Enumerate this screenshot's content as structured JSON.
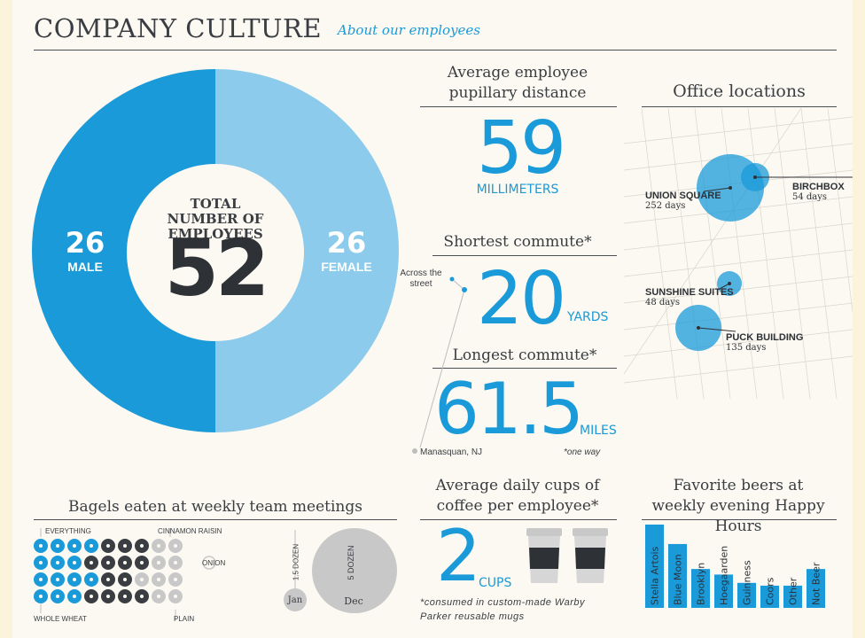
{
  "header": {
    "title": "COMPANY CULTURE",
    "subtitle": "About our employees"
  },
  "colors": {
    "blue": "#1a9ad9",
    "light_blue": "#8ccbec",
    "dark": "#3a3d42",
    "grey": "#c8c8c8",
    "bg": "#fbf9f1"
  },
  "employees": {
    "center_label": "TOTAL NUMBER OF EMPLOYEES",
    "total": "52",
    "male_count": "26",
    "male_label": "MALE",
    "female_count": "26",
    "female_label": "FEMALE"
  },
  "pupillary": {
    "title": "Average employee pupillary distance",
    "value": "59",
    "unit": "MILLIMETERS"
  },
  "shortest": {
    "title": "Shortest commute*",
    "value": "20",
    "unit": "YARDS",
    "note": "Across the street"
  },
  "longest": {
    "title": "Longest commute*",
    "value": "61.5",
    "unit": "MILES",
    "place": "Manasquan, NJ",
    "footnote": "*one way"
  },
  "offices": {
    "title": "Office locations",
    "items": [
      {
        "name": "UNION SQUARE",
        "days": "252 days"
      },
      {
        "name": "BIRCHBOX",
        "days": "54 days"
      },
      {
        "name": "SUNSHINE SUITES",
        "days": "48 days"
      },
      {
        "name": "PUCK BUILDING",
        "days": "135 days"
      }
    ]
  },
  "bagels": {
    "title": "Bagels eaten at weekly team meetings",
    "labels": {
      "everything": "EVERYTHING",
      "cinnamon": "CINNAMON RAISIN",
      "onion": "ONION",
      "whole_wheat": "WHOLE WHEAT",
      "plain": "PLAIN"
    },
    "jan": {
      "label": "Jan",
      "amount": "1.5 DOZEN"
    },
    "dec": {
      "label": "Dec",
      "amount": "5 DOZEN"
    }
  },
  "coffee": {
    "title": "Average daily cups of coffee per employee*",
    "value": "2",
    "unit": "CUPS",
    "footnote": "*consumed in custom-made Warby Parker reusable mugs"
  },
  "chart_data": {
    "type": "bar",
    "title": "Favorite beers at weekly evening Happy Hours",
    "categories": [
      "Stella Artois",
      "Blue Moon",
      "Brooklyn",
      "Hoegaarden",
      "Guinness",
      "Coors",
      "Other",
      "Not Beer"
    ],
    "values": [
      30,
      23,
      14,
      12,
      9,
      8,
      8,
      14
    ],
    "ylim": [
      0,
      30
    ]
  }
}
